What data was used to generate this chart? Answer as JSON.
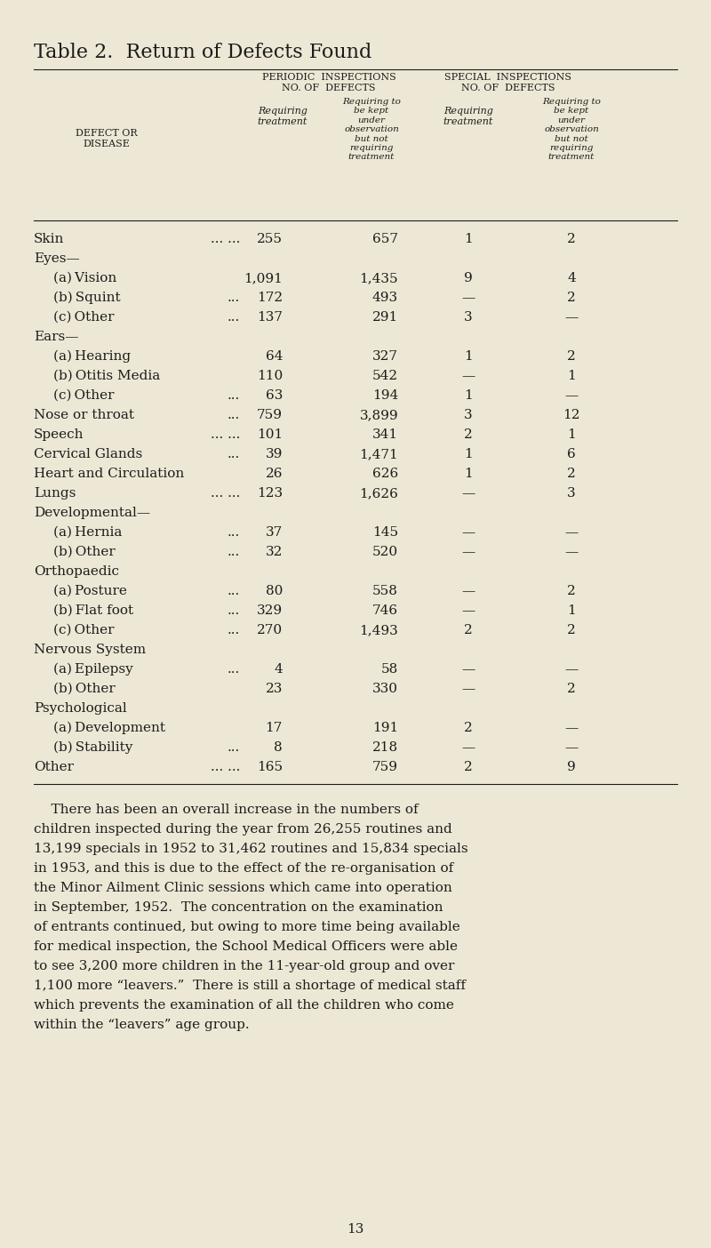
{
  "title": "Table 2.  Return of Defects Found",
  "bg_color": "#ede8d5",
  "text_color": "#1c1c1c",
  "page_number": "13",
  "rows": [
    {
      "label": "Skin",
      "dots": "... ...",
      "indent": 0,
      "header": false,
      "c1": "255",
      "c2": "657",
      "c3": "1",
      "c4": "2"
    },
    {
      "label": "Eyes—",
      "dots": "",
      "indent": 0,
      "header": true,
      "c1": "",
      "c2": "",
      "c3": "",
      "c4": ""
    },
    {
      "label": "(a) Vision",
      "dots": "",
      "indent": 1,
      "header": false,
      "c1": "1,091",
      "c2": "1,435",
      "c3": "9",
      "c4": "4"
    },
    {
      "label": "(b) Squint",
      "dots": "...",
      "indent": 1,
      "header": false,
      "c1": "172",
      "c2": "493",
      "c3": "—",
      "c4": "2"
    },
    {
      "label": "(c) Other",
      "dots": "...",
      "indent": 1,
      "header": false,
      "c1": "137",
      "c2": "291",
      "c3": "3",
      "c4": "—"
    },
    {
      "label": "Ears—",
      "dots": "",
      "indent": 0,
      "header": true,
      "c1": "",
      "c2": "",
      "c3": "",
      "c4": ""
    },
    {
      "label": "(a) Hearing",
      "dots": "",
      "indent": 1,
      "header": false,
      "c1": "64",
      "c2": "327",
      "c3": "1",
      "c4": "2"
    },
    {
      "label": "(b) Otitis Media",
      "dots": "",
      "indent": 1,
      "header": false,
      "c1": "110",
      "c2": "542",
      "c3": "—",
      "c4": "1"
    },
    {
      "label": "(c) Other",
      "dots": "...",
      "indent": 1,
      "header": false,
      "c1": "63",
      "c2": "194",
      "c3": "1",
      "c4": "—"
    },
    {
      "label": "Nose or throat",
      "dots": "...",
      "indent": 0,
      "header": false,
      "c1": "759",
      "c2": "3,899",
      "c3": "3",
      "c4": "12"
    },
    {
      "label": "Speech",
      "dots": "... ...",
      "indent": 0,
      "header": false,
      "c1": "101",
      "c2": "341",
      "c3": "2",
      "c4": "1"
    },
    {
      "label": "Cervical Glands",
      "dots": "...",
      "indent": 0,
      "header": false,
      "c1": "39",
      "c2": "1,471",
      "c3": "1",
      "c4": "6"
    },
    {
      "label": "Heart and Circulation",
      "dots": "",
      "indent": 0,
      "header": false,
      "c1": "26",
      "c2": "626",
      "c3": "1",
      "c4": "2"
    },
    {
      "label": "Lungs",
      "dots": "... ...",
      "indent": 0,
      "header": false,
      "c1": "123",
      "c2": "1,626",
      "c3": "—",
      "c4": "3"
    },
    {
      "label": "Developmental—",
      "dots": "",
      "indent": 0,
      "header": true,
      "c1": "",
      "c2": "",
      "c3": "",
      "c4": ""
    },
    {
      "label": "(a) Hernia",
      "dots": "...",
      "indent": 1,
      "header": false,
      "c1": "37",
      "c2": "145",
      "c3": "—",
      "c4": "—"
    },
    {
      "label": "(b) Other",
      "dots": "...",
      "indent": 1,
      "header": false,
      "c1": "32",
      "c2": "520",
      "c3": "—",
      "c4": "—"
    },
    {
      "label": "Orthopaedic",
      "dots": "",
      "indent": 0,
      "header": true,
      "c1": "",
      "c2": "",
      "c3": "",
      "c4": ""
    },
    {
      "label": "(a) Posture",
      "dots": "...",
      "indent": 1,
      "header": false,
      "c1": "80",
      "c2": "558",
      "c3": "—",
      "c4": "2"
    },
    {
      "label": "(b) Flat foot",
      "dots": "...",
      "indent": 1,
      "header": false,
      "c1": "329",
      "c2": "746",
      "c3": "—",
      "c4": "1"
    },
    {
      "label": "(c) Other",
      "dots": "...",
      "indent": 1,
      "header": false,
      "c1": "270",
      "c2": "1,493",
      "c3": "2",
      "c4": "2"
    },
    {
      "label": "Nervous System",
      "dots": "",
      "indent": 0,
      "header": true,
      "c1": "",
      "c2": "",
      "c3": "",
      "c4": ""
    },
    {
      "label": "(a) Epilepsy",
      "dots": "...",
      "indent": 1,
      "header": false,
      "c1": "4",
      "c2": "58",
      "c3": "—",
      "c4": "—"
    },
    {
      "label": "(b) Other",
      "dots": "",
      "indent": 1,
      "header": false,
      "c1": "23",
      "c2": "330",
      "c3": "—",
      "c4": "2"
    },
    {
      "label": "Psychological",
      "dots": "",
      "indent": 0,
      "header": true,
      "c1": "",
      "c2": "",
      "c3": "",
      "c4": ""
    },
    {
      "label": "(a) Development",
      "dots": "",
      "indent": 1,
      "header": false,
      "c1": "17",
      "c2": "191",
      "c3": "2",
      "c4": "—"
    },
    {
      "label": "(b) Stability",
      "dots": "...",
      "indent": 1,
      "header": false,
      "c1": "8",
      "c2": "218",
      "c3": "—",
      "c4": "—"
    },
    {
      "label": "Other",
      "dots": "... ...",
      "indent": 0,
      "header": false,
      "c1": "165",
      "c2": "759",
      "c3": "2",
      "c4": "9"
    }
  ],
  "para_lines": [
    "    There has been an overall increase in the numbers of",
    "children inspected during the year from 26,255 routines and",
    "13,199 specials in 1952 to 31,462 routines and 15,834 specials",
    "in 1953, and this is due to the effect of the re-organisation of",
    "the Minor Ailment Clinic sessions which came into operation",
    "in September, 1952.  The concentration on the examination",
    "of entrants continued, but owing to more time being available",
    "for medical inspection, the School Medical Officers were able",
    "to see 3,200 more children in the 11-year-old group and over",
    "1,100 more “leavers.”  There is still a shortage of medical staff",
    "which prevents the examination of all the children who come",
    "within the “leavers” age group."
  ]
}
